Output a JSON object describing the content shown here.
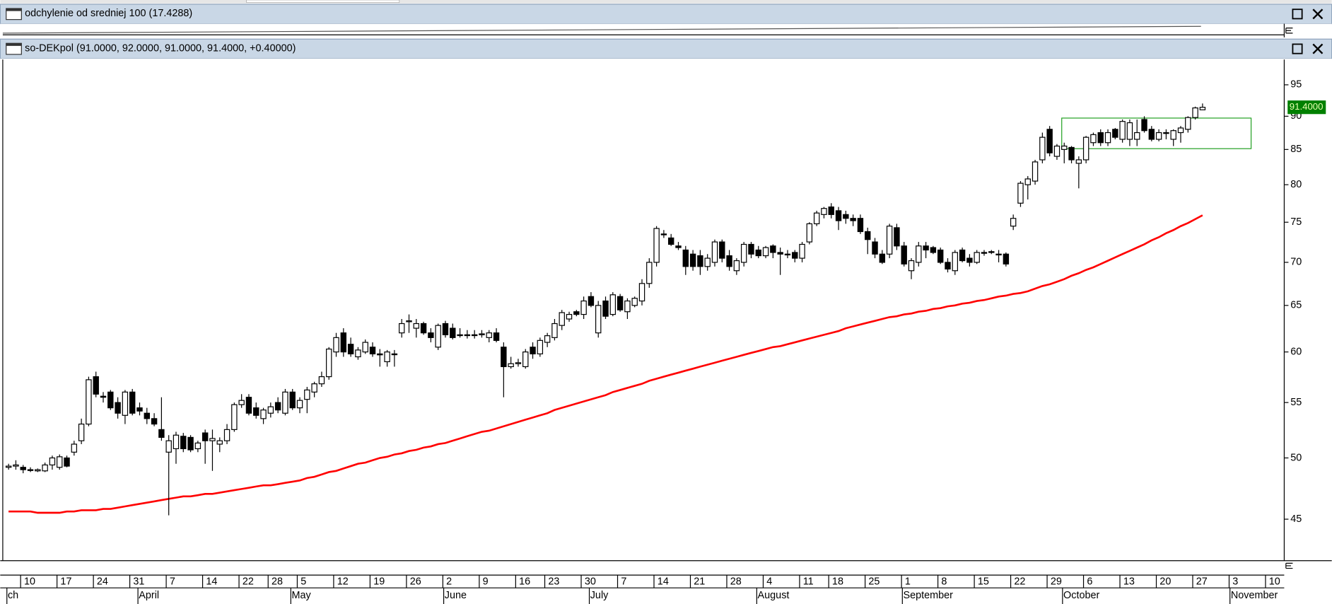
{
  "indicator_panel": {
    "title": "odchylenie od sredniej 100 (17.4288)"
  },
  "chart_data": {
    "type": "candlestick",
    "title": "so-DEKpol (91.0000, 92.0000, 91.0000, 91.4000, +0.40000)",
    "categories": [
      null,
      null,
      "10",
      null,
      null,
      null,
      null,
      "17",
      null,
      null,
      null,
      null,
      "24",
      null,
      null,
      null,
      null,
      "31",
      null,
      null,
      null,
      null,
      "7",
      null,
      null,
      null,
      null,
      "14",
      null,
      null,
      null,
      null,
      "22",
      null,
      null,
      null,
      "28",
      null,
      null,
      null,
      "5",
      null,
      null,
      null,
      null,
      "12",
      null,
      null,
      null,
      null,
      "19",
      null,
      null,
      null,
      null,
      "26",
      null,
      null,
      null,
      null,
      "2",
      null,
      null,
      null,
      null,
      "9",
      null,
      null,
      null,
      null,
      "16",
      null,
      null,
      null,
      "23",
      null,
      null,
      null,
      null,
      "30",
      null,
      null,
      null,
      null,
      "7",
      null,
      null,
      null,
      null,
      "14",
      null,
      null,
      null,
      null,
      "21",
      null,
      null,
      null,
      null,
      "28",
      null,
      null,
      null,
      null,
      "4",
      null,
      null,
      null,
      null,
      "11",
      null,
      null,
      null,
      "18",
      null,
      null,
      null,
      null,
      "25",
      null,
      null,
      null,
      null,
      "1",
      null,
      null,
      null,
      null,
      "8",
      null,
      null,
      null,
      null,
      "15",
      null,
      null,
      null,
      null,
      "22",
      null,
      null,
      null,
      null,
      "29",
      null,
      null,
      null,
      null,
      "6",
      null,
      null,
      null,
      null,
      "13",
      null,
      null,
      null,
      null,
      "20",
      null,
      null,
      null,
      null,
      "27",
      null,
      null,
      null,
      null,
      "3",
      null,
      null,
      null,
      null,
      "10"
    ],
    "month_categories": [
      "ch",
      null,
      null,
      null,
      null,
      null,
      null,
      null,
      null,
      null,
      null,
      null,
      null,
      null,
      null,
      null,
      null,
      null,
      "April",
      null,
      null,
      null,
      null,
      null,
      null,
      null,
      null,
      null,
      null,
      null,
      null,
      null,
      null,
      null,
      null,
      null,
      null,
      null,
      null,
      "May",
      null,
      null,
      null,
      null,
      null,
      null,
      null,
      null,
      null,
      null,
      null,
      null,
      null,
      null,
      null,
      null,
      null,
      null,
      null,
      null,
      "June",
      null,
      null,
      null,
      null,
      null,
      null,
      null,
      null,
      null,
      null,
      null,
      null,
      null,
      null,
      null,
      null,
      null,
      null,
      null,
      "July",
      null,
      null,
      null,
      null,
      null,
      null,
      null,
      null,
      null,
      null,
      null,
      null,
      null,
      null,
      null,
      null,
      null,
      null,
      null,
      null,
      null,
      null,
      "August",
      null,
      null,
      null,
      null,
      null,
      null,
      null,
      null,
      null,
      null,
      null,
      null,
      null,
      null,
      null,
      null,
      null,
      null,
      null,
      "September",
      null,
      null,
      null,
      null,
      null,
      null,
      null,
      null,
      null,
      null,
      null,
      null,
      null,
      null,
      null,
      null,
      null,
      null,
      null,
      null,
      null,
      "October",
      null,
      null,
      null,
      null,
      null,
      null,
      null,
      null,
      null,
      null,
      null,
      null,
      null,
      null,
      null,
      null,
      null,
      null,
      null,
      null,
      null,
      null,
      "November",
      null,
      null,
      null,
      null,
      null
    ],
    "ohlc": [
      [
        49.2,
        49.5,
        49.0,
        49.3
      ],
      [
        49.3,
        49.8,
        49.0,
        49.4
      ],
      [
        49.2,
        49.4,
        48.7,
        49.0
      ],
      [
        49.0,
        49.2,
        48.8,
        49.0
      ],
      [
        48.9,
        49.1,
        48.8,
        49.0
      ],
      [
        48.9,
        49.6,
        48.8,
        49.4
      ],
      [
        49.4,
        50.2,
        49.0,
        50.0
      ],
      [
        49.2,
        50.3,
        49.0,
        50.1
      ],
      [
        50.0,
        50.2,
        49.2,
        49.3
      ],
      [
        50.5,
        51.5,
        50.2,
        51.2
      ],
      [
        51.5,
        53.5,
        51.2,
        53.0
      ],
      [
        53.0,
        57.5,
        52.8,
        57.2
      ],
      [
        57.5,
        58.0,
        55.5,
        55.8
      ],
      [
        55.6,
        56.0,
        55.0,
        55.5
      ],
      [
        56.0,
        56.2,
        54.3,
        54.5
      ],
      [
        55.0,
        55.5,
        53.5,
        54.0
      ],
      [
        53.8,
        56.2,
        53.0,
        56.0
      ],
      [
        56.0,
        56.3,
        53.8,
        54.0
      ],
      [
        54.5,
        55.0,
        53.8,
        54.2
      ],
      [
        54.0,
        54.5,
        53.0,
        53.5
      ],
      [
        53.5,
        54.0,
        52.8,
        53.0
      ],
      [
        52.5,
        55.5,
        51.5,
        51.8
      ],
      [
        50.5,
        52.0,
        45.3,
        51.5
      ],
      [
        50.8,
        52.3,
        49.5,
        52.0
      ],
      [
        51.9,
        52.2,
        50.5,
        50.8
      ],
      [
        51.8,
        52.0,
        50.5,
        50.7
      ],
      [
        50.8,
        51.5,
        50.5,
        51.3
      ],
      [
        52.2,
        52.5,
        49.5,
        51.5
      ],
      [
        51.5,
        52.5,
        48.9,
        51.7
      ],
      [
        51.2,
        51.8,
        50.5,
        51.5
      ],
      [
        51.5,
        53.0,
        51.2,
        52.5
      ],
      [
        52.5,
        55.0,
        52.3,
        54.8
      ],
      [
        54.8,
        55.8,
        54.5,
        55.2
      ],
      [
        55.5,
        55.8,
        53.8,
        54.0
      ],
      [
        54.5,
        55.0,
        53.5,
        53.8
      ],
      [
        53.5,
        54.5,
        53.0,
        54.3
      ],
      [
        54.0,
        55.0,
        53.6,
        54.6
      ],
      [
        55.0,
        55.5,
        54.0,
        54.3
      ],
      [
        54.0,
        56.3,
        53.8,
        56.0
      ],
      [
        56.0,
        56.3,
        54.3,
        54.5
      ],
      [
        54.5,
        55.5,
        54.0,
        55.2
      ],
      [
        55.3,
        56.5,
        54.0,
        56.2
      ],
      [
        56.0,
        57.0,
        55.5,
        56.8
      ],
      [
        56.8,
        58.0,
        56.5,
        57.5
      ],
      [
        57.5,
        60.5,
        57.2,
        60.3
      ],
      [
        60.0,
        62.0,
        59.5,
        61.5
      ],
      [
        62.0,
        62.5,
        59.5,
        60.0
      ],
      [
        60.8,
        61.5,
        59.5,
        59.8
      ],
      [
        59.5,
        60.5,
        59.2,
        60.2
      ],
      [
        60.0,
        61.3,
        59.8,
        61.0
      ],
      [
        60.5,
        61.0,
        59.5,
        59.8
      ],
      [
        59.8,
        60.3,
        58.5,
        59.7
      ],
      [
        59.0,
        60.2,
        58.5,
        60.0
      ],
      [
        59.8,
        60.2,
        58.5,
        59.8
      ],
      [
        62.0,
        63.5,
        61.5,
        63.0
      ],
      [
        63.2,
        64.0,
        62.0,
        63.3
      ],
      [
        62.5,
        63.5,
        61.5,
        63.0
      ],
      [
        63.0,
        63.2,
        61.8,
        62.0
      ],
      [
        62.0,
        62.5,
        61.0,
        61.5
      ],
      [
        60.5,
        63.0,
        60.2,
        62.8
      ],
      [
        63.0,
        63.3,
        61.5,
        61.8
      ],
      [
        62.5,
        63.0,
        61.3,
        61.5
      ],
      [
        61.8,
        62.5,
        61.5,
        61.8
      ],
      [
        61.8,
        62.3,
        61.4,
        61.8
      ],
      [
        61.8,
        62.3,
        61.4,
        61.8
      ],
      [
        61.8,
        62.3,
        61.5,
        61.9
      ],
      [
        61.5,
        62.3,
        61.0,
        62.0
      ],
      [
        62.0,
        62.5,
        61.0,
        61.2
      ],
      [
        60.5,
        61.0,
        55.5,
        58.5
      ],
      [
        58.5,
        59.5,
        58.3,
        58.8
      ],
      [
        58.8,
        59.3,
        58.5,
        58.9
      ],
      [
        58.5,
        60.3,
        58.3,
        60.0
      ],
      [
        60.5,
        61.0,
        59.3,
        59.8
      ],
      [
        59.8,
        61.5,
        59.5,
        61.2
      ],
      [
        61.0,
        62.0,
        60.5,
        61.7
      ],
      [
        61.5,
        63.5,
        61.2,
        63.0
      ],
      [
        62.8,
        64.5,
        62.3,
        64.2
      ],
      [
        63.5,
        64.3,
        63.2,
        64.0
      ],
      [
        64.3,
        64.5,
        63.8,
        64.0
      ],
      [
        64.0,
        66.0,
        63.5,
        65.5
      ],
      [
        66.0,
        66.5,
        64.8,
        65.0
      ],
      [
        62.0,
        65.5,
        61.5,
        65.0
      ],
      [
        65.5,
        66.0,
        63.5,
        63.8
      ],
      [
        64.0,
        66.5,
        63.8,
        66.2
      ],
      [
        66.0,
        66.3,
        64.3,
        64.5
      ],
      [
        64.3,
        65.8,
        63.5,
        65.5
      ],
      [
        65.0,
        66.0,
        64.8,
        65.8
      ],
      [
        65.5,
        68.0,
        65.0,
        67.5
      ],
      [
        67.5,
        70.5,
        67.0,
        70.0
      ],
      [
        70.0,
        74.5,
        69.5,
        74.2
      ],
      [
        73.5,
        74.0,
        73.0,
        73.5
      ],
      [
        73.0,
        73.5,
        72.0,
        72.2
      ],
      [
        72.0,
        72.5,
        71.5,
        71.8
      ],
      [
        71.5,
        72.0,
        68.5,
        69.5
      ],
      [
        71.0,
        71.5,
        69.0,
        69.5
      ],
      [
        70.8,
        71.5,
        68.5,
        69.5
      ],
      [
        69.5,
        71.0,
        69.0,
        70.5
      ],
      [
        70.0,
        72.8,
        69.5,
        72.5
      ],
      [
        72.5,
        72.8,
        70.0,
        70.5
      ],
      [
        70.8,
        71.5,
        69.0,
        69.5
      ],
      [
        69.0,
        70.5,
        68.5,
        70.2
      ],
      [
        70.0,
        72.5,
        69.5,
        72.2
      ],
      [
        72.2,
        72.5,
        70.5,
        71.0
      ],
      [
        71.5,
        72.0,
        70.5,
        70.8
      ],
      [
        70.8,
        72.0,
        70.5,
        71.8
      ],
      [
        72.0,
        72.2,
        70.5,
        71.2
      ],
      [
        71.2,
        71.8,
        68.5,
        71.0
      ],
      [
        71.0,
        71.5,
        70.5,
        71.0
      ],
      [
        71.2,
        71.5,
        70.0,
        70.5
      ],
      [
        70.5,
        72.5,
        70.0,
        72.2
      ],
      [
        72.5,
        75.0,
        72.2,
        74.8
      ],
      [
        74.8,
        76.5,
        74.5,
        76.2
      ],
      [
        76.0,
        77.0,
        75.5,
        76.8
      ],
      [
        77.0,
        77.5,
        75.5,
        76.0
      ],
      [
        76.5,
        77.0,
        74.0,
        75.2
      ],
      [
        76.0,
        76.5,
        74.8,
        75.5
      ],
      [
        75.5,
        76.0,
        74.5,
        75.2
      ],
      [
        75.5,
        76.0,
        73.5,
        73.8
      ],
      [
        73.8,
        74.3,
        71.0,
        72.8
      ],
      [
        72.5,
        73.0,
        70.5,
        71.0
      ],
      [
        71.0,
        71.5,
        69.8,
        70.0
      ],
      [
        71.0,
        74.8,
        70.5,
        74.5
      ],
      [
        74.3,
        74.8,
        71.5,
        72.0
      ],
      [
        72.0,
        72.5,
        69.5,
        69.8
      ],
      [
        69.0,
        70.5,
        68.0,
        70.2
      ],
      [
        70.0,
        72.5,
        69.5,
        72.0
      ],
      [
        72.0,
        72.5,
        70.5,
        71.5
      ],
      [
        71.8,
        72.0,
        71.0,
        71.2
      ],
      [
        71.5,
        71.8,
        69.8,
        70.0
      ],
      [
        70.0,
        70.5,
        68.8,
        69.2
      ],
      [
        69.0,
        71.5,
        68.5,
        71.2
      ],
      [
        71.5,
        71.8,
        70.0,
        70.2
      ],
      [
        70.5,
        71.0,
        69.5,
        70.0
      ],
      [
        70.0,
        71.5,
        69.8,
        71.2
      ],
      [
        71.2,
        71.5,
        70.8,
        71.2
      ],
      [
        71.3,
        71.5,
        71.0,
        71.3
      ],
      [
        71.0,
        71.5,
        70.0,
        71.0
      ],
      [
        71.0,
        71.2,
        69.5,
        69.8
      ],
      [
        74.5,
        76.0,
        74.0,
        75.5
      ],
      [
        77.5,
        80.5,
        77.0,
        80.2
      ],
      [
        80.0,
        81.2,
        78.0,
        80.8
      ],
      [
        80.5,
        83.5,
        80.0,
        83.2
      ],
      [
        83.5,
        87.5,
        83.0,
        86.8
      ],
      [
        88.0,
        88.5,
        84.0,
        84.5
      ],
      [
        84.0,
        85.8,
        83.5,
        85.5
      ],
      [
        85.0,
        86.0,
        83.0,
        85.5
      ],
      [
        85.3,
        85.5,
        83.0,
        83.5
      ],
      [
        83.0,
        84.0,
        79.5,
        83.5
      ],
      [
        83.5,
        87.0,
        83.0,
        86.8
      ],
      [
        86.0,
        87.5,
        85.5,
        87.2
      ],
      [
        87.5,
        88.0,
        85.5,
        86.0
      ],
      [
        86.0,
        88.0,
        85.5,
        87.5
      ],
      [
        88.0,
        88.2,
        86.5,
        86.8
      ],
      [
        86.5,
        89.5,
        86.0,
        89.2
      ],
      [
        86.5,
        89.5,
        85.5,
        89.0
      ],
      [
        86.5,
        89.5,
        85.5,
        87.5
      ],
      [
        89.5,
        90.0,
        87.5,
        87.8
      ],
      [
        88.0,
        88.5,
        86.2,
        86.5
      ],
      [
        86.5,
        88.0,
        86.2,
        87.5
      ],
      [
        87.5,
        88.0,
        86.5,
        87.5
      ],
      [
        86.5,
        88.0,
        85.5,
        87.8
      ],
      [
        87.5,
        88.5,
        86.0,
        88.2
      ],
      [
        88.0,
        90.0,
        87.5,
        89.8
      ],
      [
        89.8,
        91.5,
        89.5,
        91.3
      ],
      [
        91.0,
        92.0,
        91.0,
        91.4
      ],
      null,
      null,
      null,
      null,
      null,
      null,
      null,
      null,
      null
    ],
    "up_color": "#ffffff",
    "down_color": "#000000",
    "outline_color": "#000000",
    "moving_average": {
      "color": "#ff0000",
      "values": [
        45.6,
        45.6,
        45.6,
        45.6,
        45.5,
        45.5,
        45.5,
        45.5,
        45.6,
        45.6,
        45.7,
        45.7,
        45.7,
        45.8,
        45.8,
        45.9,
        46.0,
        46.1,
        46.2,
        46.3,
        46.4,
        46.5,
        46.6,
        46.7,
        46.8,
        46.8,
        46.9,
        47.0,
        47.0,
        47.1,
        47.2,
        47.3,
        47.4,
        47.5,
        47.6,
        47.7,
        47.7,
        47.8,
        47.9,
        48.0,
        48.1,
        48.3,
        48.4,
        48.6,
        48.8,
        48.9,
        49.1,
        49.3,
        49.5,
        49.6,
        49.8,
        50.0,
        50.1,
        50.3,
        50.4,
        50.6,
        50.7,
        50.9,
        51.0,
        51.2,
        51.3,
        51.5,
        51.7,
        51.9,
        52.1,
        52.3,
        52.4,
        52.6,
        52.8,
        53.0,
        53.2,
        53.4,
        53.6,
        53.8,
        54.0,
        54.3,
        54.5,
        54.7,
        54.9,
        55.1,
        55.3,
        55.5,
        55.7,
        56.0,
        56.2,
        56.4,
        56.6,
        56.8,
        57.1,
        57.3,
        57.5,
        57.7,
        57.9,
        58.1,
        58.3,
        58.5,
        58.7,
        58.9,
        59.1,
        59.3,
        59.5,
        59.7,
        59.9,
        60.1,
        60.3,
        60.5,
        60.6,
        60.8,
        61.0,
        61.2,
        61.4,
        61.6,
        61.8,
        62.0,
        62.2,
        62.5,
        62.7,
        62.9,
        63.1,
        63.3,
        63.5,
        63.7,
        63.8,
        64.0,
        64.1,
        64.3,
        64.4,
        64.6,
        64.7,
        64.9,
        65.0,
        65.2,
        65.3,
        65.5,
        65.6,
        65.8,
        66.0,
        66.1,
        66.3,
        66.4,
        66.6,
        66.9,
        67.2,
        67.4,
        67.7,
        68.0,
        68.4,
        68.7,
        69.1,
        69.4,
        69.8,
        70.2,
        70.6,
        71.0,
        71.4,
        71.8,
        72.2,
        72.7,
        73.1,
        73.6,
        74.0,
        74.5,
        74.9,
        75.4,
        75.9,
        null,
        null,
        null,
        null,
        null,
        null,
        null,
        null,
        null
      ]
    },
    "ylim": [
      41.9,
      98.8
    ],
    "yticks": [
      45,
      50,
      55,
      60,
      65,
      70,
      75,
      80,
      85,
      90,
      95
    ],
    "log_scale": true,
    "last_price": {
      "value": 91.4,
      "label": "91.4000",
      "color": "#008000"
    }
  }
}
